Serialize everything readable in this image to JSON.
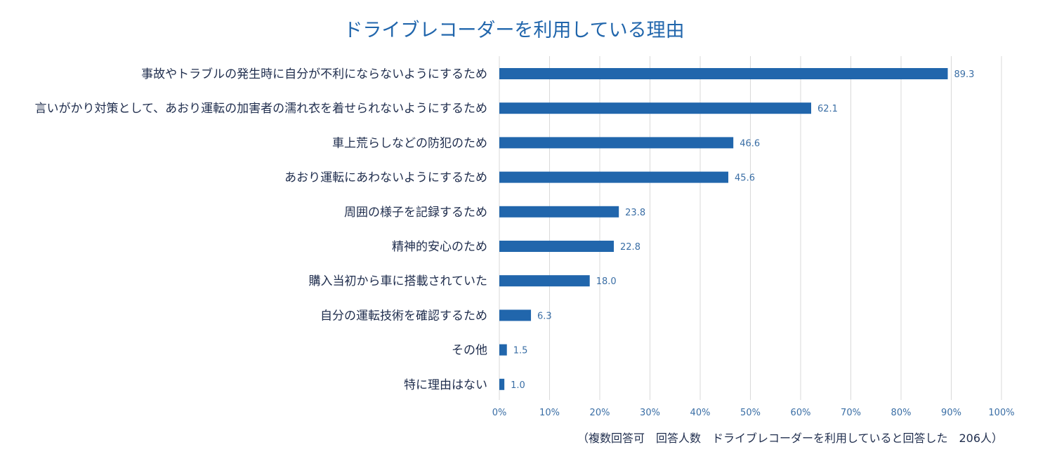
{
  "chart_data": {
    "type": "bar",
    "orientation": "horizontal",
    "title": "ドライブレコーダーを利用している理由",
    "categories": [
      "事故やトラブルの発生時に自分が不利にならないようにするため",
      "言いがかり対策として、あおり運転の加害者の濡れ衣を着せられないようにするため",
      "車上荒らしなどの防犯のため",
      "あおり運転にあわないようにするため",
      "周囲の様子を記録するため",
      "精神的安心のため",
      "購入当初から車に搭載されていた",
      "自分の運転技術を確認するため",
      "その他",
      "特に理由はない"
    ],
    "values": [
      89.3,
      62.1,
      46.6,
      45.6,
      23.8,
      22.8,
      18.0,
      6.3,
      1.5,
      1.0
    ],
    "value_labels": [
      "89.3",
      "62.1",
      "46.6",
      "45.6",
      "23.8",
      "22.8",
      "18.0",
      "6.3",
      "1.5",
      "1.0"
    ],
    "xlim": [
      0,
      100
    ],
    "x_ticks": [
      0,
      10,
      20,
      30,
      40,
      50,
      60,
      70,
      80,
      90,
      100
    ],
    "x_tick_labels": [
      "0%",
      "10%",
      "20%",
      "30%",
      "40%",
      "50%",
      "60%",
      "70%",
      "80%",
      "90%",
      "100%"
    ],
    "grid": true,
    "footnote": "（複数回答可　回答人数　ドライブレコーダーを利用していると回答した　206人）",
    "colors": {
      "bar": "#2166ac",
      "title": "#2166ac",
      "category_text": "#1f2d4d",
      "value_text": "#3a6ea5",
      "tick_text": "#3a6ea5",
      "grid": "#d9d9d9",
      "footnote": "#1f2d4d"
    }
  }
}
